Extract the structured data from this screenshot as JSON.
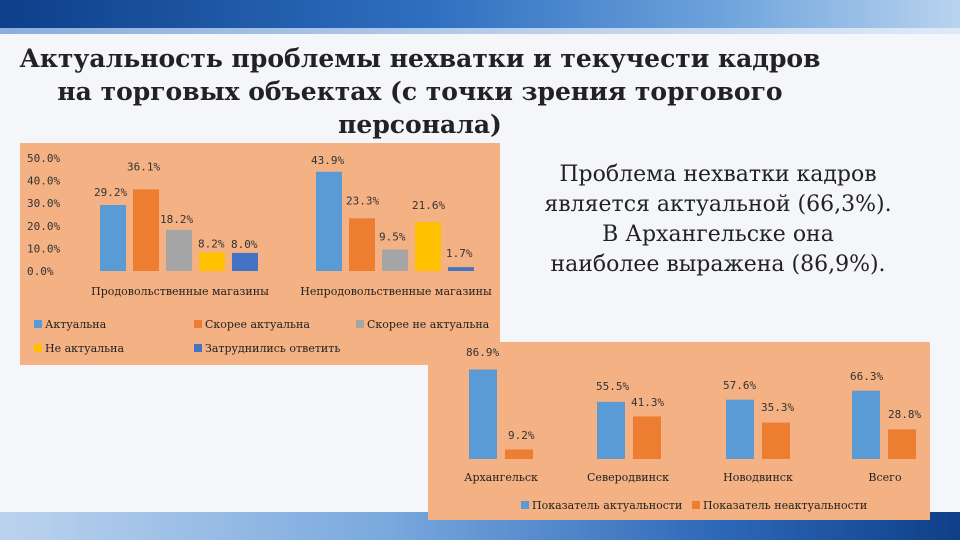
{
  "title": {
    "line1": "Актуальность проблемы нехватки и текучести кадров",
    "line2": "на торговых объектах (с точки зрения торгового",
    "line3": "персонала)"
  },
  "side_text": {
    "line1": "Проблема нехватки кадров",
    "line2": "является актуальной (66,3%).",
    "line3": "В Архангельске она",
    "line4": "наиболее выражена (86,9%)."
  },
  "chart_data": [
    {
      "type": "bar",
      "categories": [
        "Продовольственные магазины",
        "Непродовольственные магазины"
      ],
      "series": [
        {
          "name": "Актуальна",
          "values": [
            29.2,
            43.9
          ],
          "labels": [
            "29.2%",
            "43.9%"
          ],
          "color": "#5b9bd5"
        },
        {
          "name": "Скорее актуальна",
          "values": [
            36.1,
            23.3
          ],
          "labels": [
            "36.1%",
            "23.3%"
          ],
          "color": "#ed7d31"
        },
        {
          "name": "Скорее не актуальна",
          "values": [
            18.2,
            9.5
          ],
          "labels": [
            "18.2%",
            "9.5%"
          ],
          "color": "#a5a5a5"
        },
        {
          "name": "Не актуальна",
          "values": [
            8.2,
            21.6
          ],
          "labels": [
            "8.2%",
            "21.6%"
          ],
          "color": "#ffc000"
        },
        {
          "name": "Затруднились ответить",
          "values": [
            8.0,
            1.7
          ],
          "labels": [
            "8.0%",
            "1.7%"
          ],
          "color": "#4472c4"
        }
      ],
      "yticks": [
        "0.0%",
        "10.0%",
        "20.0%",
        "30.0%",
        "40.0%",
        "50.0%"
      ],
      "ylim": [
        0,
        50
      ],
      "grid": false,
      "legend": "bottom"
    },
    {
      "type": "bar",
      "categories": [
        "Архангельск",
        "Северодвинск",
        "Новодвинск",
        "Всего"
      ],
      "series": [
        {
          "name": "Показатель актуальности",
          "values": [
            86.9,
            55.5,
            57.6,
            66.3
          ],
          "labels": [
            "86.9%",
            "55.5%",
            "57.6%",
            "66.3%"
          ],
          "color": "#5b9bd5"
        },
        {
          "name": "Показатель неактуальности",
          "values": [
            9.2,
            41.3,
            35.3,
            28.8
          ],
          "labels": [
            "9.2%",
            "41.3%",
            "35.3%",
            "28.8%"
          ],
          "color": "#ed7d31"
        }
      ],
      "ylim": [
        0,
        100
      ],
      "grid": false,
      "legend": "bottom"
    }
  ]
}
